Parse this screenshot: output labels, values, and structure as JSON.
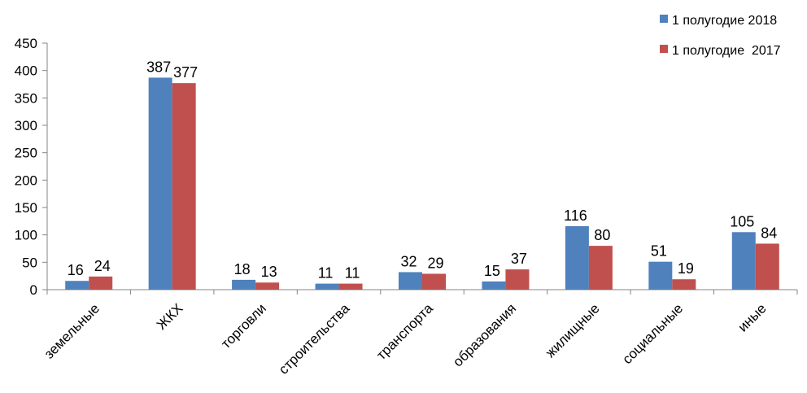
{
  "chart_data": {
    "type": "bar",
    "categories": [
      "земельные",
      "ЖКХ",
      "торговли",
      "строительства",
      "транспорта",
      "образования",
      "жилищные",
      "социальные",
      "иные"
    ],
    "series": [
      {
        "name": "1 полугодие 2018",
        "values": [
          16,
          387,
          18,
          11,
          32,
          15,
          116,
          51,
          105
        ],
        "color": "#4F81BD"
      },
      {
        "name": "1 полугодие  2017",
        "values": [
          24,
          377,
          13,
          11,
          29,
          37,
          80,
          19,
          84
        ],
        "color": "#C0504D"
      }
    ],
    "yticks": [
      "0",
      "50",
      "100",
      "150",
      "200",
      "250",
      "300",
      "350",
      "400",
      "450"
    ],
    "ylim": [
      0,
      450
    ],
    "grid": false,
    "legend_position": "top-right",
    "data_labels": true
  }
}
